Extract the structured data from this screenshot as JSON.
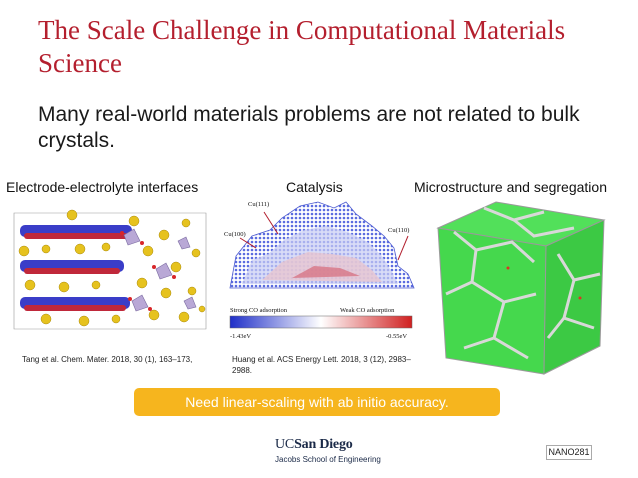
{
  "slide": {
    "title": "The Scale Challenge in Computational Materials Science",
    "bullet": "Many real-world materials problems are not related to bulk crystals."
  },
  "panels": {
    "electrode": {
      "label": "Electrode-electrolyte interfaces",
      "citation": "Tang et al. Chem. Mater. 2018, 30 (1), 163–173,"
    },
    "catalysis": {
      "label": "Catalysis",
      "facet_111": "Cu(111)",
      "facet_100": "Cu(100)",
      "facet_110": "Cu(110)",
      "colorbar_left": "Strong CO adsorption",
      "colorbar_right": "Weak CO adsorption",
      "energy_min": "-1.43eV",
      "energy_max": "-0.55eV",
      "citation": "Huang et al.  ACS Energy Lett. 2018, 3 (12), 2983–2988."
    },
    "microstructure": {
      "label": "Microstructure and segregation"
    }
  },
  "callout": "Need linear-scaling with ab initio accuracy.",
  "footer": {
    "logo_uc": "UC",
    "logo_name": "San Diego",
    "logo_sub": "Jacobs School of Engineering",
    "course_code": "NANO281"
  },
  "colors": {
    "title": "#b41f2e",
    "callout_bg": "#f6b51e",
    "grain_green": "#3fd646",
    "strong_adsorption": "#2e3bd6",
    "weak_adsorption": "#d62a2a"
  }
}
